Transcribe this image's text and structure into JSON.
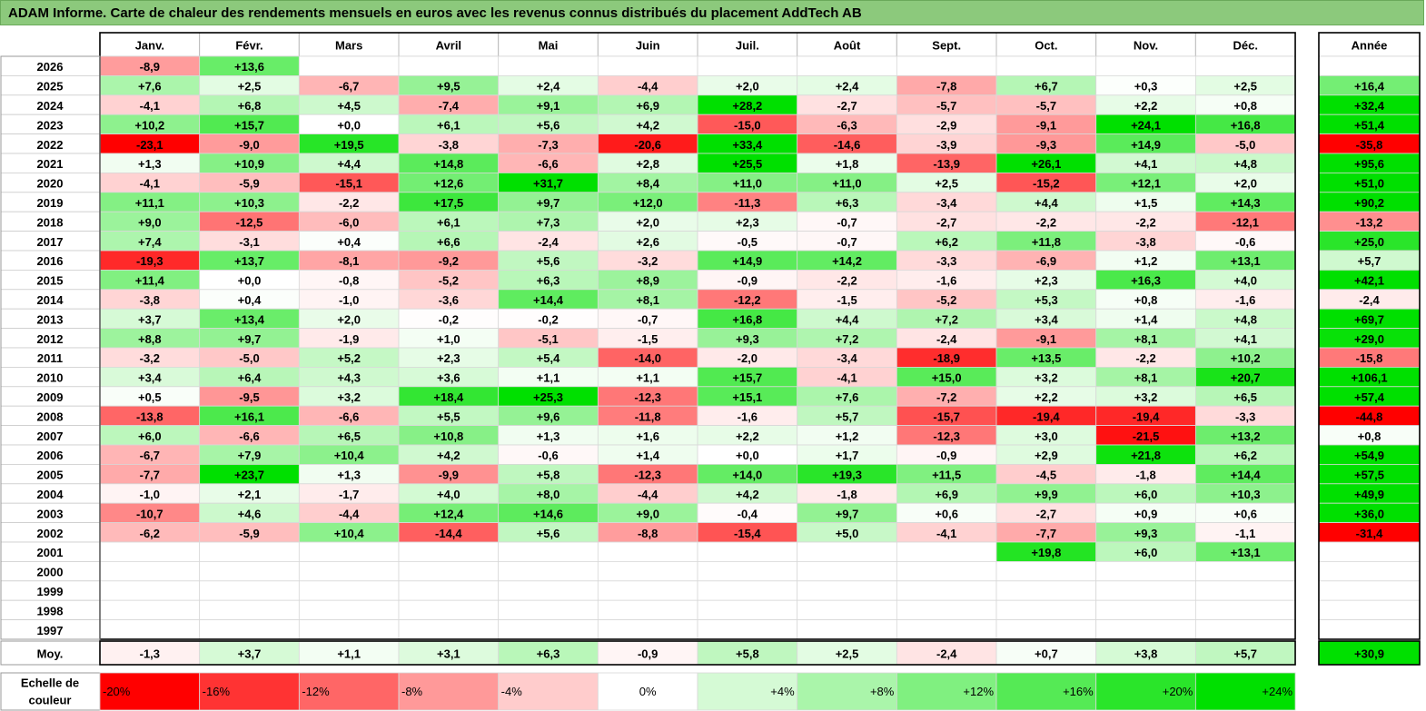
{
  "title": "ADAM Informe. Carte de chaleur des rendements mensuels en euros avec les revenus connus distribués du placement AddTech AB",
  "chart_data": {
    "type": "heatmap",
    "title": "ADAM Informe. Carte de chaleur des rendements mensuels en euros avec les revenus connus distribués du placement AddTech AB",
    "months": [
      "Janv.",
      "Févr.",
      "Mars",
      "Avril",
      "Mai",
      "Juin",
      "Juil.",
      "Août",
      "Sept.",
      "Oct.",
      "Nov.",
      "Déc."
    ],
    "year_header": "Année",
    "rows": [
      {
        "year": "2026",
        "values": [
          "-8,9",
          "+13,6",
          "",
          "",
          "",
          "",
          "",
          "",
          "",
          "",
          "",
          ""
        ],
        "annual": ""
      },
      {
        "year": "2025",
        "values": [
          "+7,6",
          "+2,5",
          "-6,7",
          "+9,5",
          "+2,4",
          "-4,4",
          "+2,0",
          "+2,4",
          "-7,8",
          "+6,7",
          "+0,3",
          "+2,5"
        ],
        "annual": "+16,4"
      },
      {
        "year": "2024",
        "values": [
          "-4,1",
          "+6,8",
          "+4,5",
          "-7,4",
          "+9,1",
          "+6,9",
          "+28,2",
          "-2,7",
          "-5,7",
          "-5,7",
          "+2,2",
          "+0,8"
        ],
        "annual": "+32,4"
      },
      {
        "year": "2023",
        "values": [
          "+10,2",
          "+15,7",
          "+0,0",
          "+6,1",
          "+5,6",
          "+4,2",
          "-15,0",
          "-6,3",
          "-2,9",
          "-9,1",
          "+24,1",
          "+16,8"
        ],
        "annual": "+51,4"
      },
      {
        "year": "2022",
        "values": [
          "-23,1",
          "-9,0",
          "+19,5",
          "-3,8",
          "-7,3",
          "-20,6",
          "+33,4",
          "-14,6",
          "-3,9",
          "-9,3",
          "+14,9",
          "-5,0"
        ],
        "annual": "-35,8"
      },
      {
        "year": "2021",
        "values": [
          "+1,3",
          "+10,9",
          "+4,4",
          "+14,8",
          "-6,6",
          "+2,8",
          "+25,5",
          "+1,8",
          "-13,9",
          "+26,1",
          "+4,1",
          "+4,8"
        ],
        "annual": "+95,6"
      },
      {
        "year": "2020",
        "values": [
          "-4,1",
          "-5,9",
          "-15,1",
          "+12,6",
          "+31,7",
          "+8,4",
          "+11,0",
          "+11,0",
          "+2,5",
          "-15,2",
          "+12,1",
          "+2,0"
        ],
        "annual": "+51,0"
      },
      {
        "year": "2019",
        "values": [
          "+11,1",
          "+10,3",
          "-2,2",
          "+17,5",
          "+9,7",
          "+12,0",
          "-11,3",
          "+6,3",
          "-3,4",
          "+4,4",
          "+1,5",
          "+14,3"
        ],
        "annual": "+90,2"
      },
      {
        "year": "2018",
        "values": [
          "+9,0",
          "-12,5",
          "-6,0",
          "+6,1",
          "+7,3",
          "+2,0",
          "+2,3",
          "-0,7",
          "-2,7",
          "-2,2",
          "-2,2",
          "-12,1"
        ],
        "annual": "-13,2"
      },
      {
        "year": "2017",
        "values": [
          "+7,4",
          "-3,1",
          "+0,4",
          "+6,6",
          "-2,4",
          "+2,6",
          "-0,5",
          "-0,7",
          "+6,2",
          "+11,8",
          "-3,8",
          "-0,6"
        ],
        "annual": "+25,0"
      },
      {
        "year": "2016",
        "values": [
          "-19,3",
          "+13,7",
          "-8,1",
          "-9,2",
          "+5,6",
          "-3,2",
          "+14,9",
          "+14,2",
          "-3,3",
          "-6,9",
          "+1,2",
          "+13,1"
        ],
        "annual": "+5,7"
      },
      {
        "year": "2015",
        "values": [
          "+11,4",
          "+0,0",
          "-0,8",
          "-5,2",
          "+6,3",
          "+8,9",
          "-0,9",
          "-2,2",
          "-1,6",
          "+2,3",
          "+16,3",
          "+4,0"
        ],
        "annual": "+42,1"
      },
      {
        "year": "2014",
        "values": [
          "-3,8",
          "+0,4",
          "-1,0",
          "-3,6",
          "+14,4",
          "+8,1",
          "-12,2",
          "-1,5",
          "-5,2",
          "+5,3",
          "+0,8",
          "-1,6"
        ],
        "annual": "-2,4"
      },
      {
        "year": "2013",
        "values": [
          "+3,7",
          "+13,4",
          "+2,0",
          "-0,2",
          "-0,2",
          "-0,7",
          "+16,8",
          "+4,4",
          "+7,2",
          "+3,4",
          "+1,4",
          "+4,8"
        ],
        "annual": "+69,7"
      },
      {
        "year": "2012",
        "values": [
          "+8,8",
          "+9,7",
          "-1,9",
          "+1,0",
          "-5,1",
          "-1,5",
          "+9,3",
          "+7,2",
          "-2,4",
          "-9,1",
          "+8,1",
          "+4,1"
        ],
        "annual": "+29,0"
      },
      {
        "year": "2011",
        "values": [
          "-3,2",
          "-5,0",
          "+5,2",
          "+2,3",
          "+5,4",
          "-14,0",
          "-2,0",
          "-3,4",
          "-18,9",
          "+13,5",
          "-2,2",
          "+10,2"
        ],
        "annual": "-15,8"
      },
      {
        "year": "2010",
        "values": [
          "+3,4",
          "+6,4",
          "+4,3",
          "+3,6",
          "+1,1",
          "+1,1",
          "+15,7",
          "-4,1",
          "+15,0",
          "+3,2",
          "+8,1",
          "+20,7"
        ],
        "annual": "+106,1"
      },
      {
        "year": "2009",
        "values": [
          "+0,5",
          "-9,5",
          "+3,2",
          "+18,4",
          "+25,3",
          "-12,3",
          "+15,1",
          "+7,6",
          "-7,2",
          "+2,2",
          "+3,2",
          "+6,5"
        ],
        "annual": "+57,4"
      },
      {
        "year": "2008",
        "values": [
          "-13,8",
          "+16,1",
          "-6,6",
          "+5,5",
          "+9,6",
          "-11,8",
          "-1,6",
          "+5,7",
          "-15,7",
          "-19,4",
          "-19,4",
          "-3,3"
        ],
        "annual": "-44,8"
      },
      {
        "year": "2007",
        "values": [
          "+6,0",
          "-6,6",
          "+6,5",
          "+10,8",
          "+1,3",
          "+1,6",
          "+2,2",
          "+1,2",
          "-12,3",
          "+3,0",
          "-21,5",
          "+13,2"
        ],
        "annual": "+0,8"
      },
      {
        "year": "2006",
        "values": [
          "-6,7",
          "+7,9",
          "+10,4",
          "+4,2",
          "-0,6",
          "+1,4",
          "+0,0",
          "+1,7",
          "-0,9",
          "+2,9",
          "+21,8",
          "+6,2"
        ],
        "annual": "+54,9"
      },
      {
        "year": "2005",
        "values": [
          "-7,7",
          "+23,7",
          "+1,3",
          "-9,9",
          "+5,8",
          "-12,3",
          "+14,0",
          "+19,3",
          "+11,5",
          "-4,5",
          "-1,8",
          "+14,4"
        ],
        "annual": "+57,5"
      },
      {
        "year": "2004",
        "values": [
          "-1,0",
          "+2,1",
          "-1,7",
          "+4,0",
          "+8,0",
          "-4,4",
          "+4,2",
          "-1,8",
          "+6,9",
          "+9,9",
          "+6,0",
          "+10,3"
        ],
        "annual": "+49,9"
      },
      {
        "year": "2003",
        "values": [
          "-10,7",
          "+4,6",
          "-4,4",
          "+12,4",
          "+14,6",
          "+9,0",
          "-0,4",
          "+9,7",
          "+0,6",
          "-2,7",
          "+0,9",
          "+0,6"
        ],
        "annual": "+36,0"
      },
      {
        "year": "2002",
        "values": [
          "-6,2",
          "-5,9",
          "+10,4",
          "-14,4",
          "+5,6",
          "-8,8",
          "-15,4",
          "+5,0",
          "-4,1",
          "-7,7",
          "+9,3",
          "-1,1"
        ],
        "annual": "-31,4"
      },
      {
        "year": "2001",
        "values": [
          "",
          "",
          "",
          "",
          "",
          "",
          "",
          "",
          "",
          "+19,8",
          "+6,0",
          "+13,1"
        ],
        "annual": ""
      },
      {
        "year": "2000",
        "values": [
          "",
          "",
          "",
          "",
          "",
          "",
          "",
          "",
          "",
          "",
          "",
          ""
        ],
        "annual": ""
      },
      {
        "year": "1999",
        "values": [
          "",
          "",
          "",
          "",
          "",
          "",
          "",
          "",
          "",
          "",
          "",
          ""
        ],
        "annual": ""
      },
      {
        "year": "1998",
        "values": [
          "",
          "",
          "",
          "",
          "",
          "",
          "",
          "",
          "",
          "",
          "",
          ""
        ],
        "annual": ""
      },
      {
        "year": "1997",
        "values": [
          "",
          "",
          "",
          "",
          "",
          "",
          "",
          "",
          "",
          "",
          "",
          ""
        ],
        "annual": ""
      }
    ],
    "average": {
      "label": "Moy.",
      "values": [
        "-1,3",
        "+3,7",
        "+1,1",
        "+3,1",
        "+6,3",
        "-0,9",
        "+5,8",
        "+2,5",
        "-2,4",
        "+0,7",
        "+3,8",
        "+5,7"
      ],
      "annual": "+30,9"
    },
    "scale": {
      "label_lines": [
        "Echelle de",
        "couleur"
      ],
      "steps": [
        "-20%",
        "-16%",
        "-12%",
        "-8%",
        "-4%",
        "0%",
        "+4%",
        "+8%",
        "+12%",
        "+16%",
        "+20%",
        "+24%"
      ]
    },
    "colors": {
      "negative_max": "#ff0000",
      "positive_max": "#00e000",
      "neutral": "#ffffff",
      "title_bar": "#8cc97c"
    }
  }
}
